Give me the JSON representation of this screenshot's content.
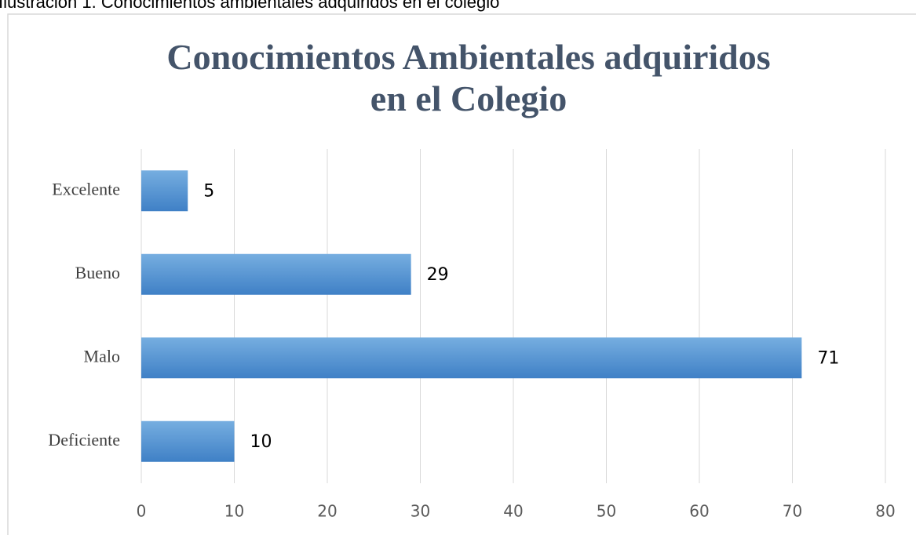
{
  "caption": "Ilustración 1. Conocimientos ambientales adquiridos en el colegio",
  "chart_data": {
    "type": "bar",
    "orientation": "horizontal",
    "title": [
      "Conocimientos Ambientales adquiridos",
      "en el Colegio"
    ],
    "categories": [
      "Excelente",
      "Bueno",
      "Malo",
      "Deficiente"
    ],
    "values": [
      5,
      29,
      71,
      10
    ],
    "color": "#5b9bd5",
    "xlim": [
      0,
      80
    ],
    "xticks": [
      0,
      10,
      20,
      30,
      40,
      50,
      60,
      70,
      80
    ],
    "grid": true
  }
}
